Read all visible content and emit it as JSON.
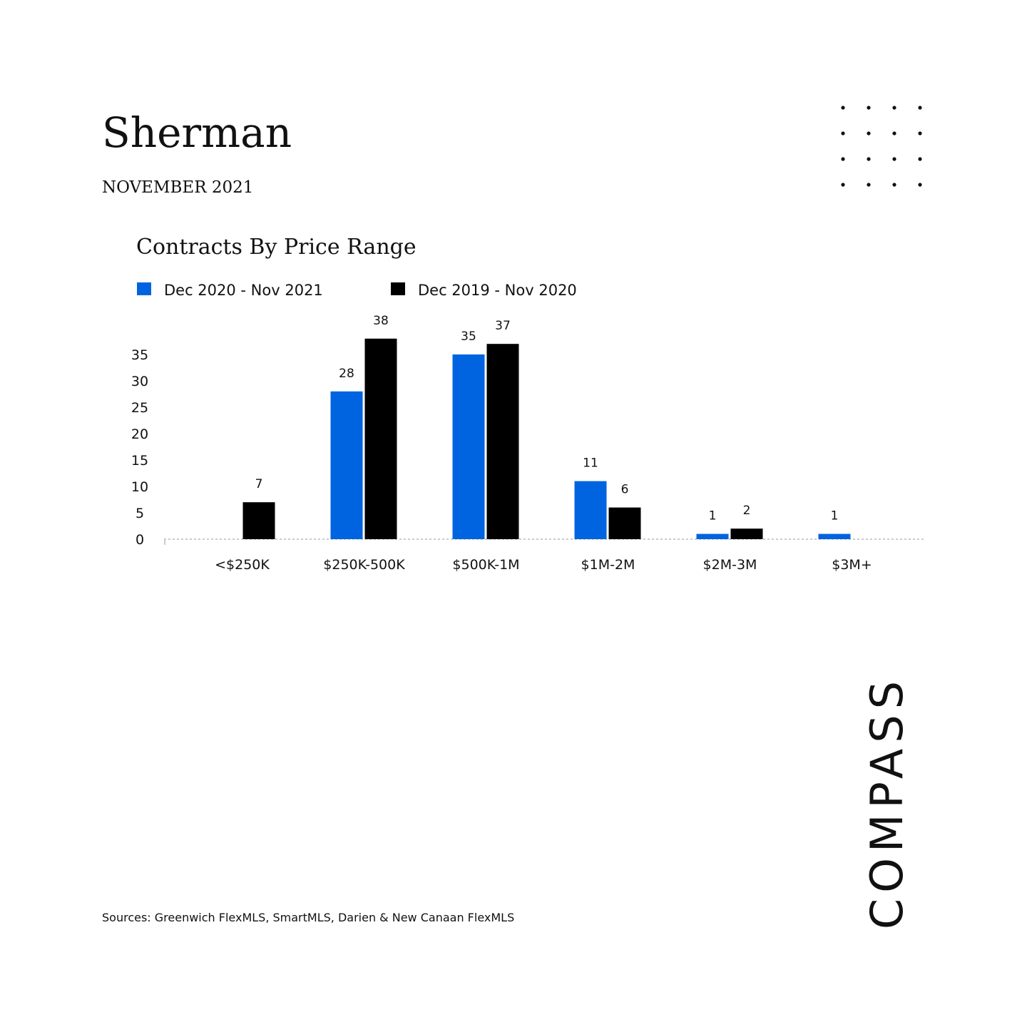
{
  "header": {
    "title": "Sherman",
    "subtitle": "NOVEMBER 2021"
  },
  "chart_data": {
    "type": "bar",
    "title": "Contracts By Price Range",
    "categories": [
      "<$250K",
      "$250K-500K",
      "$500K-1M",
      "$1M-2M",
      "$2M-3M",
      "$3M+"
    ],
    "series": [
      {
        "name": "Dec 2020 - Nov 2021",
        "color": "#0064e0",
        "values": [
          null,
          28,
          35,
          11,
          1,
          1
        ]
      },
      {
        "name": "Dec 2019 - Nov 2020",
        "color": "#000000",
        "values": [
          7,
          38,
          37,
          6,
          2,
          null
        ]
      }
    ],
    "ylim": [
      0,
      40
    ],
    "yticks": [
      0,
      5,
      10,
      15,
      20,
      25,
      30,
      35
    ],
    "grid": false
  },
  "footer": {
    "sources": "Sources: Greenwich FlexMLS, SmartMLS, Darien & New Canaan FlexMLS"
  },
  "logo": "COMPASS"
}
